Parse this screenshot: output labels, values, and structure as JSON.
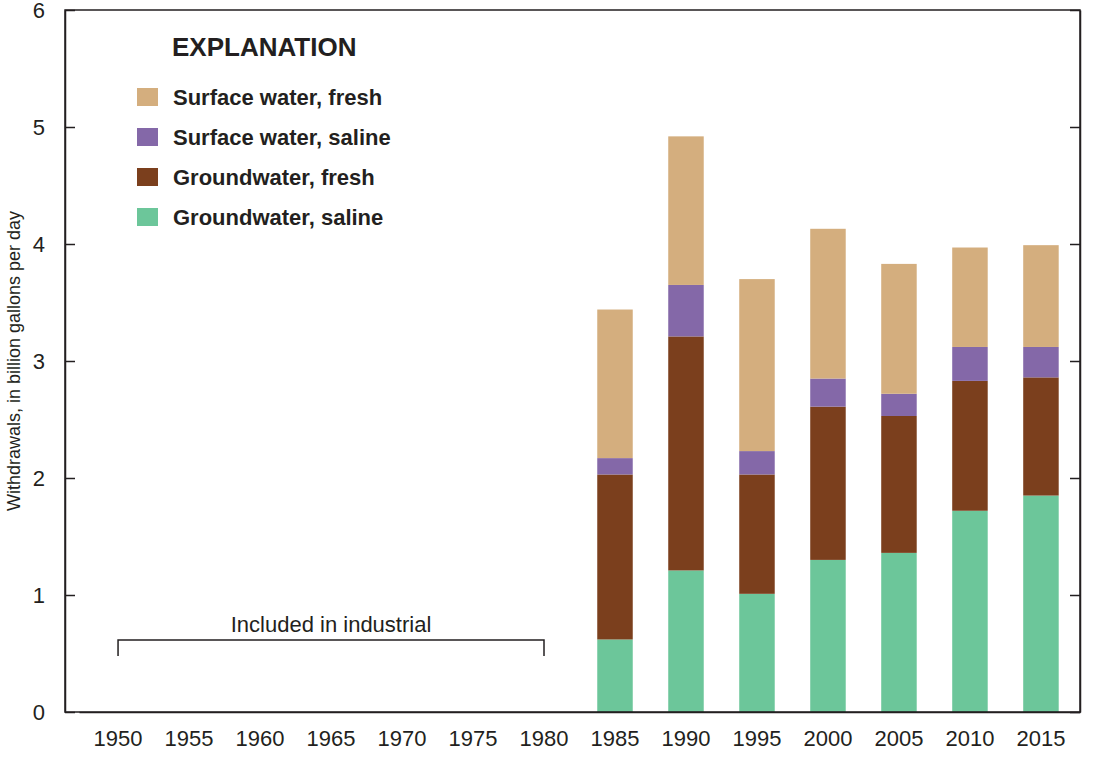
{
  "chart_data": {
    "type": "bar",
    "stacked": true,
    "orientation": "vertical",
    "ylabel": "Withdrawals, in billion gallons per day",
    "legend_title": "EXPLANATION",
    "legend": "upper left",
    "grid": false,
    "categories": [
      "1950",
      "1955",
      "1960",
      "1965",
      "1970",
      "1975",
      "1980",
      "1985",
      "1990",
      "1995",
      "2000",
      "2005",
      "2010",
      "2015"
    ],
    "series": [
      {
        "name": "Surface water, fresh",
        "color": "#d4ae7e",
        "values": [
          null,
          null,
          null,
          null,
          null,
          null,
          null,
          1.27,
          1.27,
          1.47,
          1.28,
          1.11,
          0.85,
          0.87
        ]
      },
      {
        "name": "Surface water, saline",
        "color": "#8468a8",
        "values": [
          null,
          null,
          null,
          null,
          null,
          null,
          null,
          0.14,
          0.44,
          0.2,
          0.24,
          0.19,
          0.29,
          0.26
        ]
      },
      {
        "name": "Groundwater, fresh",
        "color": "#7b3f1d",
        "values": [
          null,
          null,
          null,
          null,
          null,
          null,
          null,
          1.41,
          2.0,
          1.02,
          1.31,
          1.17,
          1.11,
          1.01
        ]
      },
      {
        "name": "Groundwater, saline",
        "color": "#6cc69a",
        "values": [
          null,
          null,
          null,
          null,
          null,
          null,
          null,
          0.62,
          1.21,
          1.01,
          1.3,
          1.36,
          1.72,
          1.85
        ]
      }
    ],
    "ylim": [
      0,
      6
    ],
    "yticks": [
      0,
      1,
      2,
      3,
      4,
      5,
      6
    ],
    "annotations": [
      {
        "text": "Included in industrial",
        "x_start": "1950",
        "x_end": "1980"
      }
    ]
  }
}
